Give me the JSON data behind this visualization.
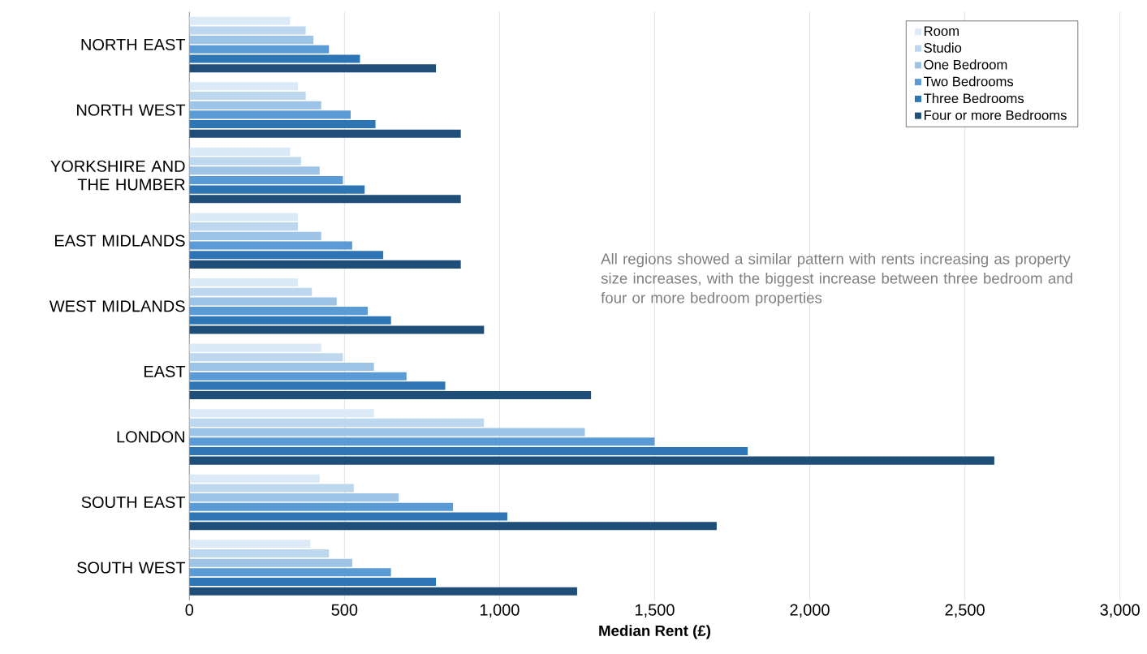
{
  "chart_data": {
    "type": "bar",
    "orientation": "horizontal",
    "xlabel": "Median Rent (£)",
    "categories": [
      "NORTH EAST",
      "NORTH WEST",
      "YORKSHIRE AND THE HUMBER",
      "EAST MIDLANDS",
      "WEST MIDLANDS",
      "EAST",
      "LONDON",
      "SOUTH EAST",
      "SOUTH WEST"
    ],
    "series": [
      {
        "name": "Room",
        "color": "#dce9f6",
        "values": [
          325,
          350,
          325,
          350,
          350,
          425,
          595,
          420,
          390
        ]
      },
      {
        "name": "Studio",
        "color": "#bdd7ee",
        "values": [
          375,
          375,
          360,
          350,
          395,
          495,
          950,
          530,
          450
        ]
      },
      {
        "name": "One Bedroom",
        "color": "#9dc3e6",
        "values": [
          400,
          425,
          420,
          425,
          475,
          595,
          1275,
          675,
          525
        ]
      },
      {
        "name": "Two Bedrooms",
        "color": "#5b9bd5",
        "values": [
          450,
          520,
          495,
          525,
          575,
          700,
          1500,
          850,
          650
        ]
      },
      {
        "name": "Three Bedrooms",
        "color": "#2e75b6",
        "values": [
          550,
          600,
          565,
          625,
          650,
          825,
          1800,
          1025,
          795
        ]
      },
      {
        "name": "Four or more Bedrooms",
        "color": "#1f4e79",
        "values": [
          795,
          875,
          875,
          875,
          950,
          1295,
          2595,
          1700,
          1250
        ]
      }
    ],
    "xlim": [
      0,
      3000
    ],
    "xticks": [
      0,
      500,
      {
        "value": 1000,
        "label": "1,000"
      },
      {
        "value": 1500,
        "label": "1,500"
      },
      {
        "value": 2000,
        "label": "2,000"
      },
      {
        "value": 2500,
        "label": "2,500"
      },
      {
        "value": 3000,
        "label": "3,000"
      }
    ],
    "grid": "x",
    "legend": "top right",
    "annotations": [
      "All regions showed a similar pattern with rents increasing as property size increases, with the biggest increase between three bedroom and four or more bedroom properties"
    ]
  }
}
